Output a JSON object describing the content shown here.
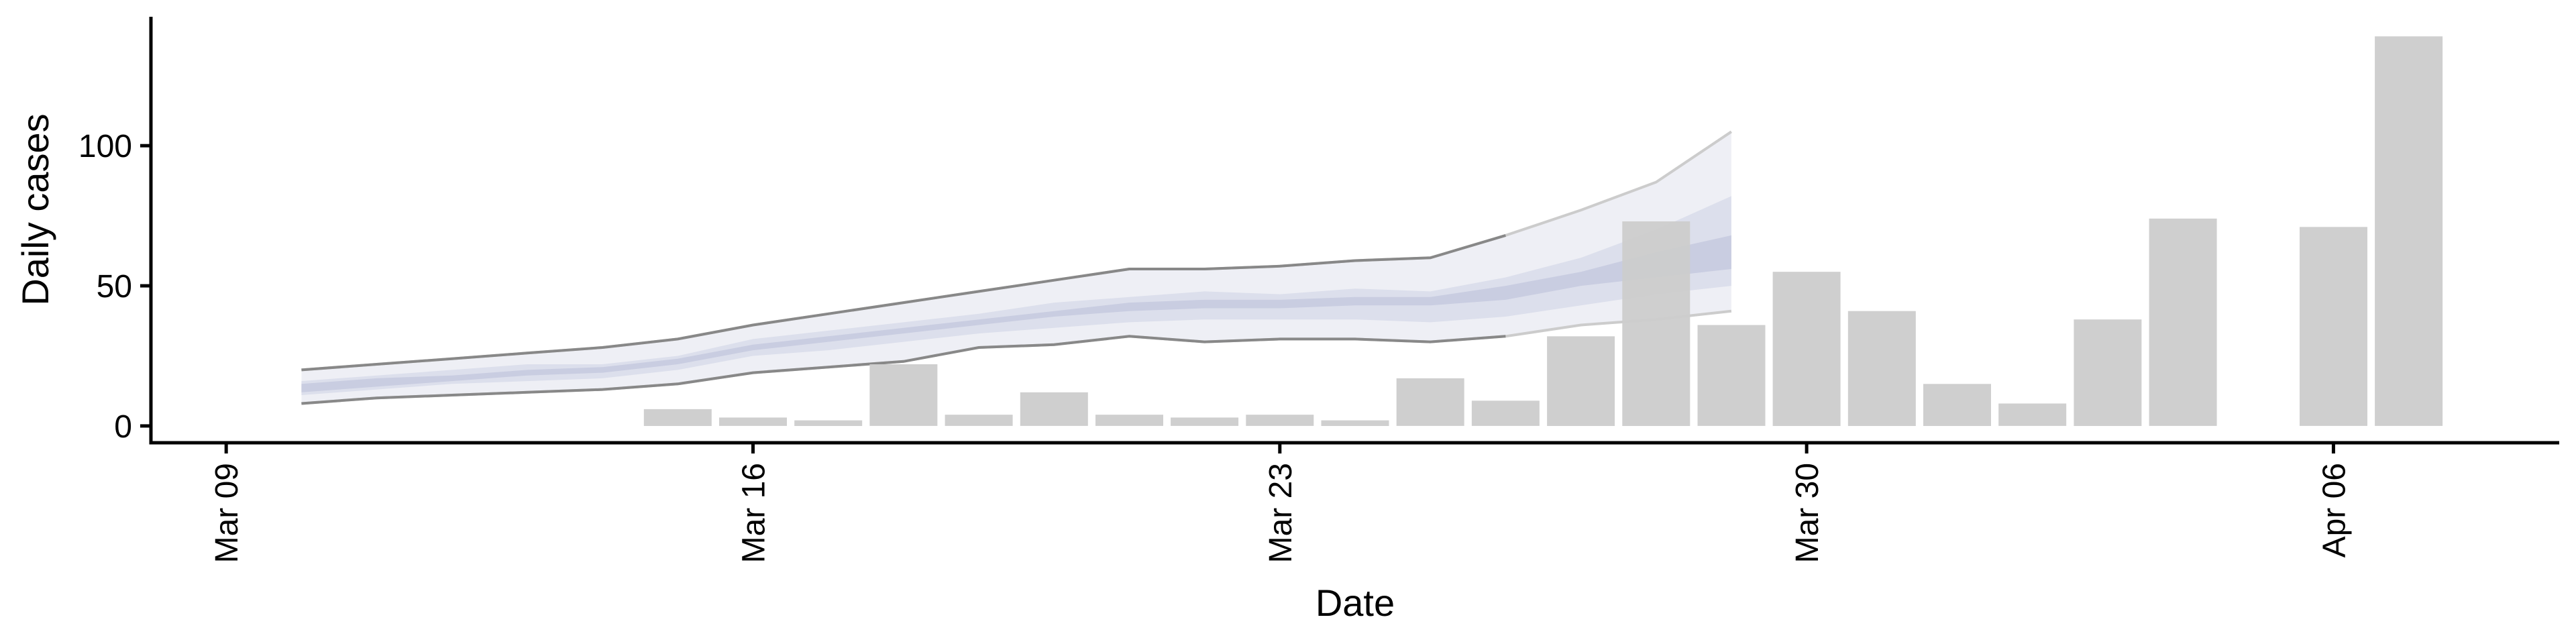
{
  "chart_data": {
    "type": "bar",
    "title": "",
    "xlabel": "Date",
    "ylabel": "Daily cases",
    "xlim": [
      "2020-03-08",
      "2020-04-09"
    ],
    "ylim": [
      -6,
      146
    ],
    "grid": false,
    "legend": "none",
    "x_ticks": [
      {
        "date": "2020-03-09",
        "label": "Mar 09"
      },
      {
        "date": "2020-03-16",
        "label": "Mar 16"
      },
      {
        "date": "2020-03-23",
        "label": "Mar 23"
      },
      {
        "date": "2020-03-30",
        "label": "Mar 30"
      },
      {
        "date": "2020-04-06",
        "label": "Apr 06"
      }
    ],
    "y_ticks": [
      0,
      50,
      100
    ],
    "bars": {
      "color": "#cccccc",
      "dates": [
        "2020-03-15",
        "2020-03-16",
        "2020-03-17",
        "2020-03-18",
        "2020-03-19",
        "2020-03-20",
        "2020-03-21",
        "2020-03-22",
        "2020-03-23",
        "2020-03-24",
        "2020-03-25",
        "2020-03-26",
        "2020-03-27",
        "2020-03-28",
        "2020-03-29",
        "2020-03-30",
        "2020-03-31",
        "2020-04-01",
        "2020-04-02",
        "2020-04-03",
        "2020-04-04",
        "2020-04-06",
        "2020-04-07"
      ],
      "values": [
        6,
        3,
        2,
        22,
        4,
        12,
        4,
        3,
        4,
        2,
        17,
        9,
        32,
        73,
        36,
        55,
        41,
        15,
        8,
        38,
        74,
        71,
        139
      ]
    },
    "estimate_band": {
      "dates": [
        "2020-03-10",
        "2020-03-11",
        "2020-03-12",
        "2020-03-13",
        "2020-03-14",
        "2020-03-15",
        "2020-03-16",
        "2020-03-17",
        "2020-03-18",
        "2020-03-19",
        "2020-03-20",
        "2020-03-21",
        "2020-03-22",
        "2020-03-23",
        "2020-03-24",
        "2020-03-25",
        "2020-03-26",
        "2020-03-27",
        "2020-03-28",
        "2020-03-29"
      ],
      "lower_90": [
        8,
        10,
        11,
        12,
        13,
        15,
        19,
        21,
        23,
        28,
        29,
        32,
        30,
        31,
        31,
        30,
        32,
        36,
        38,
        41
      ],
      "upper_90": [
        20,
        22,
        24,
        26,
        28,
        31,
        36,
        40,
        44,
        48,
        52,
        56,
        56,
        57,
        59,
        60,
        68,
        77,
        87,
        105
      ],
      "lower_50": [
        11,
        13,
        15,
        16,
        17,
        20,
        25,
        27,
        30,
        33,
        35,
        37,
        38,
        38,
        38,
        37,
        39,
        43,
        47,
        50
      ],
      "upper_50": [
        16,
        18,
        20,
        22,
        22,
        25,
        31,
        34,
        37,
        40,
        44,
        46,
        48,
        47,
        49,
        48,
        53,
        60,
        70,
        82
      ],
      "lower_20": [
        12,
        14,
        16,
        18,
        19,
        22,
        27,
        30,
        33,
        36,
        39,
        41,
        42,
        42,
        43,
        43,
        45,
        50,
        53,
        56
      ],
      "upper_20": [
        15,
        17,
        18,
        20,
        21,
        24,
        29,
        32,
        35,
        38,
        41,
        44,
        45,
        45,
        46,
        46,
        50,
        55,
        62,
        68
      ],
      "estimate_until": "2020-03-26",
      "colors": {
        "band_90": "#e8e9f1",
        "band_50": "#d6d9e8",
        "band_20": "#c4c8de",
        "bound_line": "#888888"
      }
    },
    "colors": {
      "axis": "#000000",
      "background": "#ffffff"
    }
  }
}
